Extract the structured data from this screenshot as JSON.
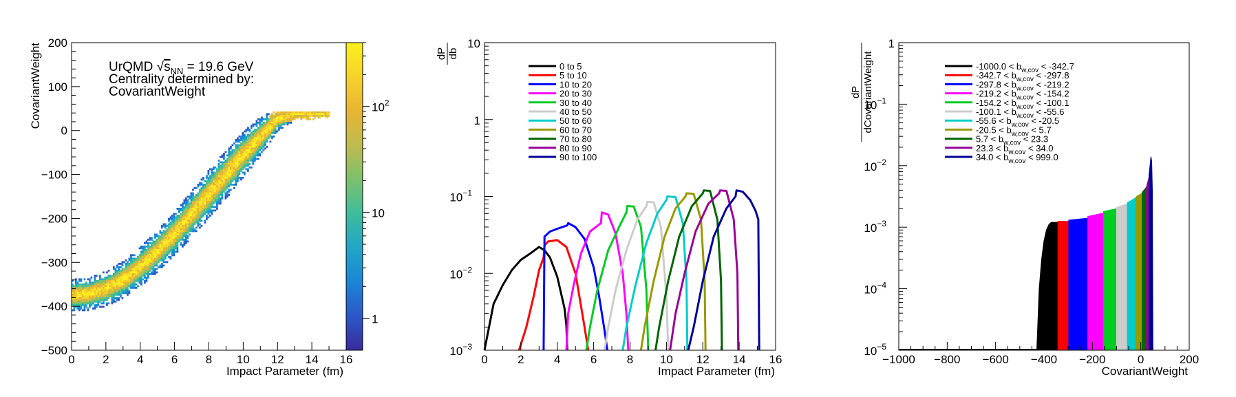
{
  "chart_data": [
    {
      "type": "heatmap",
      "xlabel": "Impact Parameter (fm)",
      "ylabel": "CovariantWeight",
      "xlim": [
        0,
        16
      ],
      "ylim": [
        -500,
        200
      ],
      "xticks": [
        "0",
        "2",
        "4",
        "6",
        "8",
        "10",
        "12",
        "14",
        "16"
      ],
      "yticks": [
        "200",
        "100",
        "0",
        "−100",
        "−200",
        "−300",
        "−400",
        "−500"
      ],
      "annotation": {
        "line1_prefix": "UrQMD ",
        "line1_sqrt": "√",
        "line1_s": "s",
        "line1_sub": "NN",
        "line1_suffix": " = 19.6 GeV",
        "line2": "Centrality determined by:",
        "line3": "CovariantWeight"
      },
      "colorbar": {
        "scale": "log",
        "range": [
          0.5,
          400
        ],
        "ticks": [
          {
            "value": 1,
            "label": "1"
          },
          {
            "value": 10,
            "label": "10"
          },
          {
            "value": 100,
            "label": "10",
            "sup": "2"
          }
        ],
        "colors": [
          "#3a2b9c",
          "#2b58c9",
          "#1b86d6",
          "#21a6c7",
          "#3dbd9b",
          "#7cc16c",
          "#bfbb4e",
          "#e8b533",
          "#f6d229",
          "#fbf01e"
        ]
      },
      "band": {
        "b": [
          0,
          1,
          2,
          3,
          4,
          5,
          6,
          7,
          8,
          9,
          10,
          11,
          12,
          13,
          14,
          15
        ],
        "center": [
          -375,
          -372,
          -360,
          -340,
          -310,
          -275,
          -235,
          -190,
          -145,
          -100,
          -55,
          -15,
          25,
          38,
          38,
          38
        ],
        "halfwidth": [
          30,
          30,
          32,
          34,
          36,
          38,
          40,
          42,
          44,
          44,
          42,
          36,
          22,
          12,
          10,
          8
        ]
      }
    },
    {
      "type": "line",
      "xlabel": "Impact Parameter (fm)",
      "ylabel_num": "dP",
      "ylabel_den": "db",
      "xlim": [
        0,
        16
      ],
      "ylim": [
        0.001,
        10
      ],
      "yscale": "log",
      "xticks": [
        "0",
        "2",
        "4",
        "6",
        "8",
        "10",
        "12",
        "14",
        "16"
      ],
      "yticks": [
        {
          "value": 10,
          "label": "10",
          "sup": ""
        },
        {
          "value": 1,
          "label": "1",
          "sup": ""
        },
        {
          "value": 0.1,
          "label": "10",
          "sup": "−1"
        },
        {
          "value": 0.01,
          "label": "10",
          "sup": "−2"
        },
        {
          "value": 0.001,
          "label": "10",
          "sup": "−3"
        }
      ],
      "legend_position": "top-left",
      "series": [
        {
          "name": "0 to 5",
          "color": "#000000",
          "x": [
            0,
            0.5,
            1,
            1.5,
            2,
            2.5,
            3,
            3.3,
            3.6,
            4,
            4.4,
            4.5,
            4.55
          ],
          "y": [
            0.001,
            0.004,
            0.007,
            0.011,
            0.015,
            0.018,
            0.022,
            0.02,
            0.016,
            0.009,
            0.0035,
            0.0021,
            0.001
          ]
        },
        {
          "name": "5 to 10",
          "color": "#ff0000",
          "x": [
            1.9,
            2.3,
            2.7,
            3.0,
            3.25,
            3.3,
            3.5,
            4.0,
            4.5,
            5.0,
            5.5,
            5.7
          ],
          "y": [
            0.001,
            0.002,
            0.005,
            0.011,
            0.016,
            0.023,
            0.026,
            0.027,
            0.022,
            0.01,
            0.002,
            0.001
          ]
        },
        {
          "name": "10 to 20",
          "color": "#0000ff",
          "x": [
            3.25,
            3.3,
            3.6,
            4.0,
            4.55,
            4.6,
            5.0,
            5.5,
            6.0,
            6.3,
            6.6,
            6.75
          ],
          "y": [
            0.001,
            0.03,
            0.035,
            0.038,
            0.042,
            0.045,
            0.04,
            0.028,
            0.012,
            0.005,
            0.0018,
            0.001
          ]
        },
        {
          "name": "20 to 30",
          "color": "#ff00ff",
          "x": [
            4.5,
            4.6,
            4.9,
            5.3,
            5.8,
            6.4,
            6.45,
            6.8,
            7.2,
            7.6,
            7.8,
            7.9
          ],
          "y": [
            0.001,
            0.003,
            0.007,
            0.018,
            0.035,
            0.045,
            0.062,
            0.058,
            0.033,
            0.01,
            0.003,
            0.001
          ]
        },
        {
          "name": "30 to 40",
          "color": "#00cc22",
          "x": [
            5.6,
            5.8,
            6.2,
            6.8,
            7.5,
            7.8,
            7.85,
            8.2,
            8.6,
            8.9,
            9.0
          ],
          "y": [
            0.001,
            0.002,
            0.006,
            0.02,
            0.045,
            0.062,
            0.075,
            0.074,
            0.04,
            0.006,
            0.001
          ]
        },
        {
          "name": "40 to 50",
          "color": "#cccccc",
          "x": [
            6.6,
            6.8,
            7.2,
            7.8,
            8.4,
            8.9,
            8.95,
            9.3,
            9.7,
            10.0,
            10.1
          ],
          "y": [
            0.001,
            0.002,
            0.006,
            0.02,
            0.05,
            0.075,
            0.085,
            0.084,
            0.04,
            0.005,
            0.001
          ]
        },
        {
          "name": "50 to 60",
          "color": "#00cccc",
          "x": [
            7.6,
            7.8,
            8.3,
            8.9,
            9.5,
            10.0,
            10.05,
            10.5,
            10.9,
            11.1,
            11.15
          ],
          "y": [
            0.001,
            0.002,
            0.007,
            0.025,
            0.06,
            0.09,
            0.1,
            0.098,
            0.045,
            0.008,
            0.001
          ]
        },
        {
          "name": "60 to 70",
          "color": "#999900",
          "x": [
            8.6,
            8.8,
            9.3,
            9.9,
            10.5,
            11.05,
            11.1,
            11.5,
            11.9,
            12.1,
            12.15
          ],
          "y": [
            0.001,
            0.002,
            0.008,
            0.03,
            0.07,
            0.1,
            0.11,
            0.108,
            0.05,
            0.008,
            0.001
          ]
        },
        {
          "name": "70 to 80",
          "color": "#006600",
          "x": [
            9.4,
            9.6,
            10.1,
            10.7,
            11.4,
            12.0,
            12.05,
            12.4,
            12.8,
            13.0,
            13.05
          ],
          "y": [
            0.001,
            0.002,
            0.008,
            0.03,
            0.075,
            0.11,
            0.12,
            0.118,
            0.05,
            0.008,
            0.001
          ]
        },
        {
          "name": "80 to 90",
          "color": "#990099",
          "x": [
            10.2,
            10.5,
            11.0,
            11.6,
            12.3,
            12.9,
            12.95,
            13.3,
            13.7,
            13.9,
            13.95
          ],
          "y": [
            0.001,
            0.003,
            0.01,
            0.035,
            0.08,
            0.11,
            0.12,
            0.118,
            0.05,
            0.01,
            0.001
          ]
        },
        {
          "name": "90 to 100",
          "color": "#000099",
          "x": [
            11.2,
            11.5,
            12.0,
            12.6,
            13.3,
            13.8,
            13.85,
            14.2,
            14.6,
            14.9,
            15.05,
            15.1
          ],
          "y": [
            0.001,
            0.002,
            0.008,
            0.03,
            0.07,
            0.1,
            0.12,
            0.115,
            0.09,
            0.065,
            0.05,
            0.001
          ]
        }
      ]
    },
    {
      "type": "bar",
      "xlabel": "CovariantWeight",
      "ylabel_num": "dP",
      "ylabel_den": "dCovariantWeight",
      "xlim": [
        -1000,
        200
      ],
      "ylim": [
        1e-05,
        1
      ],
      "yscale": "log",
      "xticks": [
        "−1000",
        "−800",
        "−600",
        "−400",
        "−200",
        "0",
        "200"
      ],
      "yticks": [
        {
          "value": 1,
          "label": "1",
          "sup": ""
        },
        {
          "value": 0.1,
          "label": "10",
          "sup": "−1"
        },
        {
          "value": 0.01,
          "label": "10",
          "sup": "−2"
        },
        {
          "value": 0.001,
          "label": "10",
          "sup": "−3"
        },
        {
          "value": 0.0001,
          "label": "10",
          "sup": "−4"
        },
        {
          "value": 1e-05,
          "label": "10",
          "sup": "−5"
        }
      ],
      "legend_position": "top-left",
      "series": [
        {
          "color": "#000000",
          "lo_label": "-1000.0 < b",
          "sub": "w,cov",
          "hi_label": " < -342.7",
          "x": [
            -430,
            -420,
            -410,
            -400,
            -390,
            -380,
            -370,
            -360,
            -342.7
          ],
          "y": [
            1e-05,
            0.0001,
            0.0003,
            0.0006,
            0.0009,
            0.0011,
            0.0012,
            0.0012,
            0.0012
          ]
        },
        {
          "color": "#ff0000",
          "lo_label": "-342.7 < b",
          "sub": "w,cov",
          "hi_label": " < -297.8",
          "x": [
            -342.7,
            -297.8
          ],
          "y": [
            0.00125,
            0.00125
          ]
        },
        {
          "color": "#0000ff",
          "lo_label": "-297.8 < b",
          "sub": "w,cov",
          "hi_label": " < -219.2",
          "x": [
            -297.8,
            -219.2
          ],
          "y": [
            0.0013,
            0.0014
          ]
        },
        {
          "color": "#ff00ff",
          "lo_label": "-219.2 < b",
          "sub": "w,cov",
          "hi_label": " < -154.2",
          "x": [
            -219.2,
            -154.2
          ],
          "y": [
            0.0015,
            0.0017
          ]
        },
        {
          "color": "#00cc22",
          "lo_label": "-154.2 < b",
          "sub": "w,cov",
          "hi_label": " < -100.1",
          "x": [
            -154.2,
            -100.1
          ],
          "y": [
            0.0018,
            0.002
          ]
        },
        {
          "color": "#cccccc",
          "lo_label": "-100.1 < b",
          "sub": "w,cov",
          "hi_label": " < -55.6",
          "x": [
            -100.1,
            -55.6
          ],
          "y": [
            0.0021,
            0.0024
          ]
        },
        {
          "color": "#00cccc",
          "lo_label": "-55.6 < b",
          "sub": "w,cov",
          "hi_label": " < -20.5",
          "x": [
            -55.6,
            -20.5
          ],
          "y": [
            0.0025,
            0.003
          ]
        },
        {
          "color": "#999900",
          "lo_label": "-20.5 < b",
          "sub": "w,cov",
          "hi_label": " < 5.7",
          "x": [
            -20.5,
            5.7
          ],
          "y": [
            0.0031,
            0.0036
          ]
        },
        {
          "color": "#006600",
          "lo_label": "5.7 < b",
          "sub": "w,cov",
          "hi_label": " < 23.3",
          "x": [
            5.7,
            23.3
          ],
          "y": [
            0.0037,
            0.0045
          ]
        },
        {
          "color": "#990099",
          "lo_label": "23.3 < b",
          "sub": "w,cov",
          "hi_label": " < 34.0",
          "x": [
            23.3,
            34.0
          ],
          "y": [
            0.0046,
            0.0065
          ]
        },
        {
          "color": "#000099",
          "lo_label": "34.0 < b",
          "sub": "w,cov",
          "hi_label": " < 999.0",
          "x": [
            34.0,
            38,
            42,
            45,
            48,
            50
          ],
          "y": [
            0.007,
            0.01,
            0.014,
            0.012,
            0.004,
            1e-05
          ]
        }
      ]
    }
  ]
}
